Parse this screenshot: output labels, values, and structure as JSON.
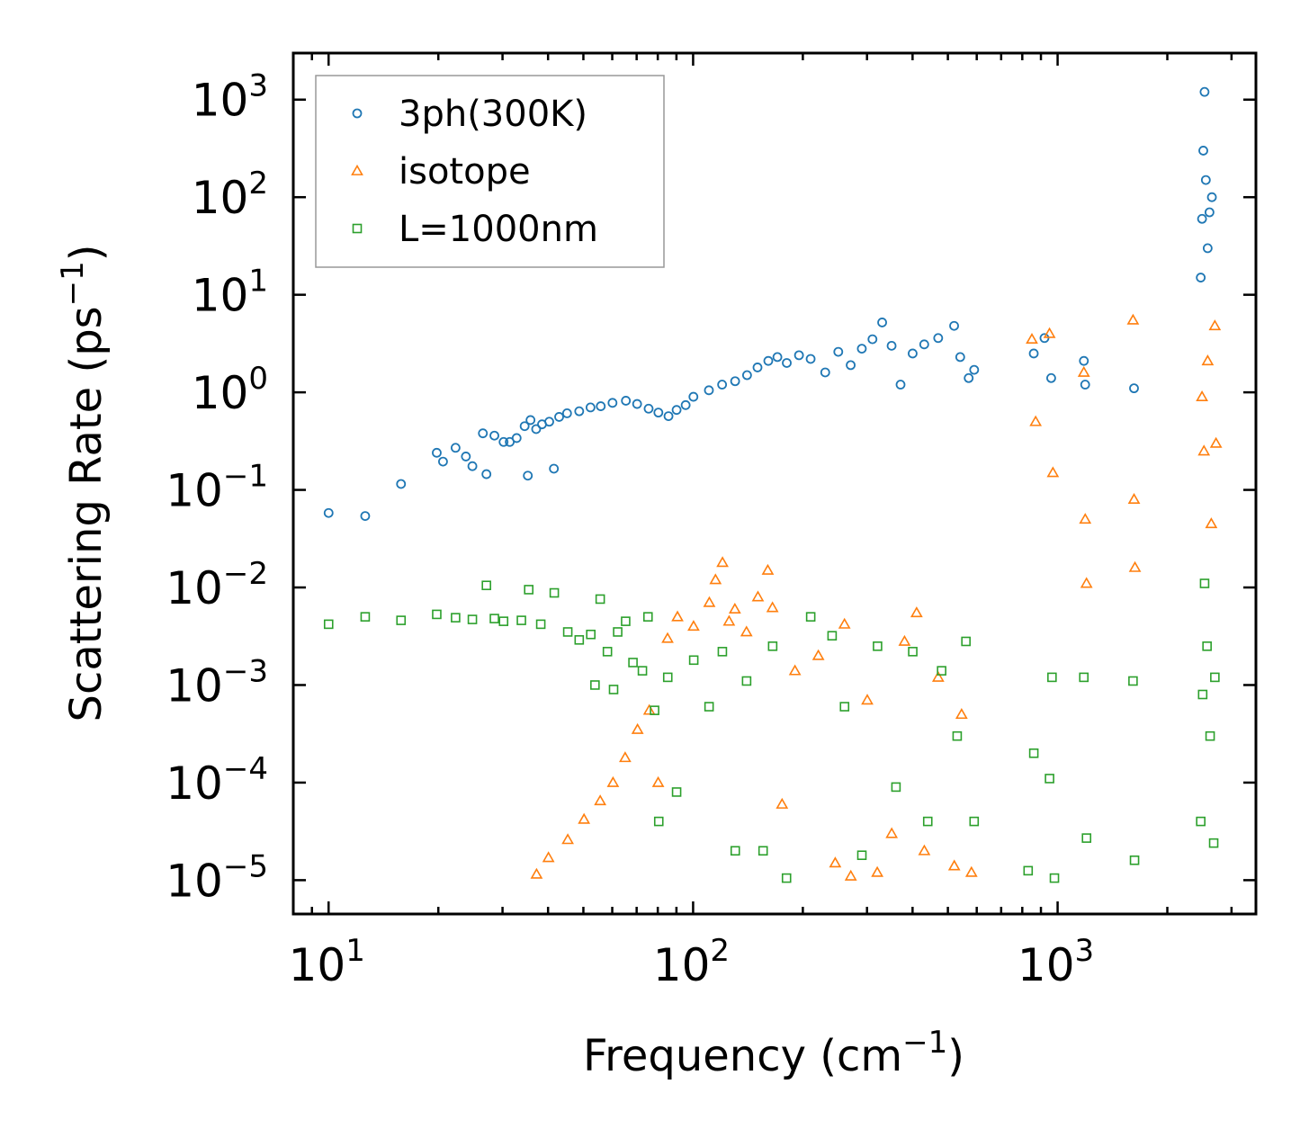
{
  "chart_data": {
    "type": "scatter",
    "xscale": "log",
    "yscale": "log",
    "xlim": [
      8,
      3500
    ],
    "ylim": [
      4.5e-06,
      3000
    ],
    "xlabel": "Frequency (cm",
    "xlabel_sup": "−1",
    "xlabel_close": ")",
    "ylabel": "Scattering Rate (ps",
    "ylabel_sup": "−1",
    "ylabel_close": ")",
    "xticks": [
      {
        "value": 10,
        "base": "10",
        "exp": "1"
      },
      {
        "value": 100,
        "base": "10",
        "exp": "2"
      },
      {
        "value": 1000,
        "base": "10",
        "exp": "3"
      }
    ],
    "yticks": [
      {
        "value": 1e-05,
        "base": "10",
        "exp": "−5"
      },
      {
        "value": 0.0001,
        "base": "10",
        "exp": "−4"
      },
      {
        "value": 0.001,
        "base": "10",
        "exp": "−3"
      },
      {
        "value": 0.01,
        "base": "10",
        "exp": "−2"
      },
      {
        "value": 0.1,
        "base": "10",
        "exp": "−1"
      },
      {
        "value": 1,
        "base": "10",
        "exp": "0"
      },
      {
        "value": 10,
        "base": "10",
        "exp": "1"
      },
      {
        "value": 100,
        "base": "10",
        "exp": "2"
      },
      {
        "value": 1000,
        "base": "10",
        "exp": "3"
      }
    ],
    "legend_position": "top-left",
    "series": [
      {
        "name": "3ph(300K)",
        "color": "#1f77b4",
        "marker": "circle",
        "points": [
          [
            10,
            0.058
          ],
          [
            12.6,
            0.054
          ],
          [
            15.8,
            0.115
          ],
          [
            19.8,
            0.24
          ],
          [
            20.6,
            0.195
          ],
          [
            22.3,
            0.27
          ],
          [
            23.8,
            0.22
          ],
          [
            24.8,
            0.175
          ],
          [
            26.5,
            0.38
          ],
          [
            27.1,
            0.145
          ],
          [
            28.5,
            0.36
          ],
          [
            30.2,
            0.31
          ],
          [
            31.4,
            0.31
          ],
          [
            32.8,
            0.34
          ],
          [
            34.5,
            0.45
          ],
          [
            35.8,
            0.52
          ],
          [
            35.2,
            0.14
          ],
          [
            37.1,
            0.42
          ],
          [
            38.5,
            0.47
          ],
          [
            40.3,
            0.5
          ],
          [
            41.5,
            0.165
          ],
          [
            42.9,
            0.56
          ],
          [
            45.1,
            0.61
          ],
          [
            48.7,
            0.64
          ],
          [
            52.3,
            0.7
          ],
          [
            55.8,
            0.72
          ],
          [
            60.1,
            0.78
          ],
          [
            65.4,
            0.82
          ],
          [
            70.2,
            0.76
          ],
          [
            75.5,
            0.68
          ],
          [
            80.3,
            0.62
          ],
          [
            85.6,
            0.57
          ],
          [
            90.1,
            0.66
          ],
          [
            95.4,
            0.74
          ],
          [
            100.2,
            0.9
          ],
          [
            110.5,
            1.05
          ],
          [
            120.1,
            1.2
          ],
          [
            130.4,
            1.3
          ],
          [
            140.6,
            1.5
          ],
          [
            150.2,
            1.8
          ],
          [
            160.8,
            2.1
          ],
          [
            170.3,
            2.3
          ],
          [
            180.7,
            2.0
          ],
          [
            195.2,
            2.4
          ],
          [
            210.1,
            2.2
          ],
          [
            230.4,
            1.6
          ],
          [
            250.2,
            2.6
          ],
          [
            270.6,
            1.9
          ],
          [
            290.3,
            2.8
          ],
          [
            310.5,
            3.5
          ],
          [
            330.1,
            5.2
          ],
          [
            350.4,
            3.0
          ],
          [
            370.8,
            1.2
          ],
          [
            400.2,
            2.5
          ],
          [
            430.6,
            3.1
          ],
          [
            470.3,
            3.6
          ],
          [
            520.1,
            4.8
          ],
          [
            540.5,
            2.3
          ],
          [
            570.2,
            1.4
          ],
          [
            590.3,
            1.7
          ],
          [
            860.1,
            2.5
          ],
          [
            920.4,
            3.6
          ],
          [
            960.2,
            1.4
          ],
          [
            1180.5,
            2.1
          ],
          [
            1190.2,
            1.2
          ],
          [
            1620.4,
            1.1
          ],
          [
            2470.1,
            15
          ],
          [
            2490.5,
            60
          ],
          [
            2510.3,
            300
          ],
          [
            2530.2,
            1200
          ],
          [
            2550.8,
            150
          ],
          [
            2580.4,
            30
          ],
          [
            2610.2,
            70
          ],
          [
            2650.1,
            100
          ]
        ]
      },
      {
        "name": "isotope",
        "color": "#ff7f0e",
        "marker": "triangle",
        "points": [
          [
            37.2,
            1.15e-05
          ],
          [
            40.1,
            1.7e-05
          ],
          [
            45.3,
            2.6e-05
          ],
          [
            50.2,
            4.2e-05
          ],
          [
            55.6,
            6.5e-05
          ],
          [
            60.3,
            0.0001
          ],
          [
            65.1,
            0.00018
          ],
          [
            70.4,
            0.00035
          ],
          [
            75.8,
            0.00055
          ],
          [
            80.2,
            0.0001
          ],
          [
            85.1,
            0.003
          ],
          [
            90.6,
            0.005
          ],
          [
            100.3,
            0.004
          ],
          [
            110.8,
            0.007
          ],
          [
            115.2,
            0.012
          ],
          [
            120.4,
            0.018
          ],
          [
            125.5,
            0.0045
          ],
          [
            130.2,
            0.006
          ],
          [
            140.1,
            0.0035
          ],
          [
            150.6,
            0.008
          ],
          [
            160.3,
            0.015
          ],
          [
            165.1,
            0.0062
          ],
          [
            175.4,
            6e-05
          ],
          [
            190.3,
            0.0014
          ],
          [
            220.6,
            0.002
          ],
          [
            245.4,
            1.5e-05
          ],
          [
            260.2,
            0.0042
          ],
          [
            270.8,
            1.1e-05
          ],
          [
            300.5,
            0.0007
          ],
          [
            320.1,
            1.2e-05
          ],
          [
            350.6,
            3e-05
          ],
          [
            380.2,
            0.0028
          ],
          [
            410.4,
            0.0055
          ],
          [
            430.8,
            2e-05
          ],
          [
            470.3,
            0.0012
          ],
          [
            520.6,
            1.4e-05
          ],
          [
            545.2,
            0.0005
          ],
          [
            580.3,
            1.2e-05
          ],
          [
            850.1,
            3.5
          ],
          [
            870.4,
            0.5
          ],
          [
            950.2,
            4.0
          ],
          [
            970.8,
            0.15
          ],
          [
            1180.3,
            1.6
          ],
          [
            1190.5,
            0.05
          ],
          [
            1200.2,
            0.011
          ],
          [
            1610.4,
            5.5
          ],
          [
            1620.8,
            0.08
          ],
          [
            1630.2,
            0.016
          ],
          [
            2490.1,
            0.9
          ],
          [
            2520.3,
            0.25
          ],
          [
            2580.6,
            2.1
          ],
          [
            2640.2,
            0.045
          ],
          [
            2700.1,
            4.8
          ],
          [
            2720.5,
            0.3
          ]
        ]
      },
      {
        "name": "L=1000nm",
        "color": "#2ca02c",
        "marker": "square",
        "points": [
          [
            10,
            0.0042
          ],
          [
            12.6,
            0.005
          ],
          [
            15.8,
            0.0046
          ],
          [
            19.8,
            0.0053
          ],
          [
            22.3,
            0.0049
          ],
          [
            24.8,
            0.0047
          ],
          [
            27.1,
            0.0105
          ],
          [
            28.5,
            0.0048
          ],
          [
            30.2,
            0.0045
          ],
          [
            33.8,
            0.0046
          ],
          [
            35.4,
            0.0095
          ],
          [
            38.2,
            0.0042
          ],
          [
            41.6,
            0.0088
          ],
          [
            45.3,
            0.0035
          ],
          [
            48.7,
            0.0029
          ],
          [
            52.4,
            0.0033
          ],
          [
            53.8,
            0.001
          ],
          [
            55.6,
            0.0076
          ],
          [
            58.2,
            0.0022
          ],
          [
            60.5,
            0.0009
          ],
          [
            62.1,
            0.0035
          ],
          [
            65.3,
            0.0045
          ],
          [
            68.4,
            0.0017
          ],
          [
            72.6,
            0.0014
          ],
          [
            75.2,
            0.005
          ],
          [
            78.4,
            0.00055
          ],
          [
            80.5,
            4e-05
          ],
          [
            85.2,
            0.0012
          ],
          [
            90.1,
            8e-05
          ],
          [
            100.4,
            0.0018
          ],
          [
            110.6,
            0.0006
          ],
          [
            120.3,
            0.0022
          ],
          [
            130.5,
            2e-05
          ],
          [
            140.2,
            0.0011
          ],
          [
            155.6,
            2e-05
          ],
          [
            165.3,
            0.0025
          ],
          [
            180.4,
            1.05e-05
          ],
          [
            210.2,
            0.005
          ],
          [
            240.6,
            0.0032
          ],
          [
            260.3,
            0.0006
          ],
          [
            290.4,
            1.8e-05
          ],
          [
            320.6,
            0.0025
          ],
          [
            360.2,
            9e-05
          ],
          [
            400.5,
            0.0022
          ],
          [
            440.3,
            4e-05
          ],
          [
            480.6,
            0.0014
          ],
          [
            530.2,
            0.0003
          ],
          [
            560.4,
            0.0028
          ],
          [
            590.2,
            4e-05
          ],
          [
            830.1,
            1.25e-05
          ],
          [
            860.4,
            0.0002
          ],
          [
            950.3,
            0.00011
          ],
          [
            965.2,
            0.0012
          ],
          [
            980.1,
            1.05e-05
          ],
          [
            1180.2,
            0.0012
          ],
          [
            1200.5,
            2.7e-05
          ],
          [
            1610.3,
            0.0011
          ],
          [
            1625.6,
            1.6e-05
          ],
          [
            2470.2,
            4e-05
          ],
          [
            2500.3,
            0.0008
          ],
          [
            2530.6,
            0.011
          ],
          [
            2570.2,
            0.0025
          ],
          [
            2620.4,
            0.0003
          ],
          [
            2680.3,
            2.4e-05
          ],
          [
            2700.5,
            0.0012
          ]
        ]
      }
    ]
  }
}
